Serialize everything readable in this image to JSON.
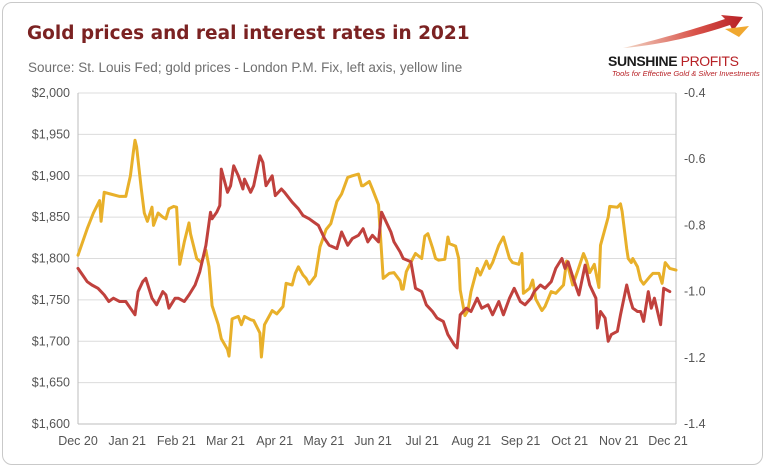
{
  "chart_data": {
    "type": "line",
    "title": "Gold prices and real interest rates in 2021",
    "subtitle": "Source: St. Louis Fed; gold prices - London P.M. Fix, left axis, yellow line",
    "x_tick_labels": [
      "Dec 20",
      "Jan 21",
      "Feb 21",
      "Mar 21",
      "Apr 21",
      "May 21",
      "Jun 21",
      "Jul 21",
      "Aug 21",
      "Sep 21",
      "Oct 21",
      "Nov 21",
      "Dec 21"
    ],
    "x_start": "2020-12-01",
    "x_end": "2021-12-24",
    "y_left": {
      "lim": [
        1600,
        2000
      ],
      "ticks": [
        1600,
        1650,
        1700,
        1750,
        1800,
        1850,
        1900,
        1950,
        2000
      ],
      "tick_labels": [
        "$1,600",
        "$1,650",
        "$1,700",
        "$1,750",
        "$1,800",
        "$1,850",
        "$1,900",
        "$1,950",
        "$2,000"
      ]
    },
    "y_right": {
      "lim": [
        -1.4,
        -0.4
      ],
      "ticks": [
        -1.4,
        -1.2,
        -1.0,
        -0.8,
        -0.6,
        -0.4
      ],
      "tick_labels": [
        "-1.4",
        "-1.2",
        "-1.0",
        "-0.8",
        "-0.6",
        "-0.4"
      ]
    },
    "grid": "horizontal",
    "series": [
      {
        "axis": "left",
        "color": "#e8b02a",
        "points": [
          [
            "2020-12-01",
            1804
          ],
          [
            "2020-12-07",
            1836
          ],
          [
            "2020-12-11",
            1855
          ],
          [
            "2020-12-15",
            1870
          ],
          [
            "2020-12-16",
            1845
          ],
          [
            "2020-12-18",
            1880
          ],
          [
            "2020-12-22",
            1878
          ],
          [
            "2020-12-28",
            1875
          ],
          [
            "2021-01-01",
            1875
          ],
          [
            "2021-01-04",
            1900
          ],
          [
            "2021-01-06",
            1930
          ],
          [
            "2021-01-07",
            1943
          ],
          [
            "2021-01-08",
            1935
          ],
          [
            "2021-01-11",
            1885
          ],
          [
            "2021-01-13",
            1855
          ],
          [
            "2021-01-15",
            1845
          ],
          [
            "2021-01-18",
            1862
          ],
          [
            "2021-01-19",
            1840
          ],
          [
            "2021-01-22",
            1855
          ],
          [
            "2021-01-25",
            1850
          ],
          [
            "2021-01-27",
            1848
          ],
          [
            "2021-01-29",
            1860
          ],
          [
            "2021-02-01",
            1863
          ],
          [
            "2021-02-03",
            1862
          ],
          [
            "2021-02-05",
            1793
          ],
          [
            "2021-02-08",
            1820
          ],
          [
            "2021-02-11",
            1843
          ],
          [
            "2021-02-12",
            1830
          ],
          [
            "2021-02-16",
            1800
          ],
          [
            "2021-02-19",
            1795
          ],
          [
            "2021-02-22",
            1810
          ],
          [
            "2021-02-24",
            1790
          ],
          [
            "2021-02-26",
            1743
          ],
          [
            "2021-03-02",
            1720
          ],
          [
            "2021-03-04",
            1703
          ],
          [
            "2021-03-08",
            1690
          ],
          [
            "2021-03-09",
            1682
          ],
          [
            "2021-03-11",
            1727
          ],
          [
            "2021-03-15",
            1730
          ],
          [
            "2021-03-17",
            1720
          ],
          [
            "2021-03-19",
            1730
          ],
          [
            "2021-03-23",
            1726
          ],
          [
            "2021-03-25",
            1725
          ],
          [
            "2021-03-29",
            1710
          ],
          [
            "2021-03-30",
            1681
          ],
          [
            "2021-04-01",
            1720
          ],
          [
            "2021-04-06",
            1737
          ],
          [
            "2021-04-09",
            1733
          ],
          [
            "2021-04-13",
            1742
          ],
          [
            "2021-04-15",
            1770
          ],
          [
            "2021-04-19",
            1768
          ],
          [
            "2021-04-21",
            1782
          ],
          [
            "2021-04-23",
            1790
          ],
          [
            "2021-04-26",
            1780
          ],
          [
            "2021-04-28",
            1776
          ],
          [
            "2021-04-30",
            1769
          ],
          [
            "2021-05-04",
            1779
          ],
          [
            "2021-05-07",
            1814
          ],
          [
            "2021-05-11",
            1835
          ],
          [
            "2021-05-14",
            1842
          ],
          [
            "2021-05-18",
            1869
          ],
          [
            "2021-05-21",
            1878
          ],
          [
            "2021-05-25",
            1898
          ],
          [
            "2021-05-28",
            1900
          ],
          [
            "2021-06-01",
            1902
          ],
          [
            "2021-06-03",
            1888
          ],
          [
            "2021-06-04",
            1888
          ],
          [
            "2021-06-08",
            1893
          ],
          [
            "2021-06-10",
            1884
          ],
          [
            "2021-06-14",
            1865
          ],
          [
            "2021-06-17",
            1776
          ],
          [
            "2021-06-21",
            1782
          ],
          [
            "2021-06-24",
            1783
          ],
          [
            "2021-06-28",
            1773
          ],
          [
            "2021-06-29",
            1763
          ],
          [
            "2021-06-30",
            1763
          ],
          [
            "2021-07-02",
            1784
          ],
          [
            "2021-07-06",
            1799
          ],
          [
            "2021-07-08",
            1806
          ],
          [
            "2021-07-12",
            1800
          ],
          [
            "2021-07-14",
            1827
          ],
          [
            "2021-07-16",
            1830
          ],
          [
            "2021-07-19",
            1813
          ],
          [
            "2021-07-21",
            1800
          ],
          [
            "2021-07-23",
            1798
          ],
          [
            "2021-07-27",
            1799
          ],
          [
            "2021-07-29",
            1826
          ],
          [
            "2021-07-30",
            1818
          ],
          [
            "2021-08-03",
            1815
          ],
          [
            "2021-08-05",
            1800
          ],
          [
            "2021-08-06",
            1762
          ],
          [
            "2021-08-09",
            1731
          ],
          [
            "2021-08-11",
            1737
          ],
          [
            "2021-08-13",
            1760
          ],
          [
            "2021-08-17",
            1788
          ],
          [
            "2021-08-19",
            1780
          ],
          [
            "2021-08-23",
            1797
          ],
          [
            "2021-08-25",
            1788
          ],
          [
            "2021-08-27",
            1795
          ],
          [
            "2021-08-31",
            1816
          ],
          [
            "2021-09-03",
            1826
          ],
          [
            "2021-09-07",
            1800
          ],
          [
            "2021-09-09",
            1795
          ],
          [
            "2021-09-13",
            1793
          ],
          [
            "2021-09-15",
            1806
          ],
          [
            "2021-09-16",
            1758
          ],
          [
            "2021-09-20",
            1764
          ],
          [
            "2021-09-22",
            1774
          ],
          [
            "2021-09-24",
            1751
          ],
          [
            "2021-09-28",
            1737
          ],
          [
            "2021-09-30",
            1742
          ],
          [
            "2021-10-04",
            1760
          ],
          [
            "2021-10-07",
            1758
          ],
          [
            "2021-10-12",
            1768
          ],
          [
            "2021-10-14",
            1797
          ],
          [
            "2021-10-18",
            1768
          ],
          [
            "2021-10-21",
            1784
          ],
          [
            "2021-10-25",
            1806
          ],
          [
            "2021-10-27",
            1797
          ],
          [
            "2021-10-29",
            1783
          ],
          [
            "2021-11-01",
            1793
          ],
          [
            "2021-11-04",
            1765
          ],
          [
            "2021-11-05",
            1816
          ],
          [
            "2021-11-10",
            1850
          ],
          [
            "2021-11-11",
            1863
          ],
          [
            "2021-11-16",
            1862
          ],
          [
            "2021-11-18",
            1866
          ],
          [
            "2021-11-19",
            1857
          ],
          [
            "2021-11-22",
            1812
          ],
          [
            "2021-11-23",
            1800
          ],
          [
            "2021-11-25",
            1795
          ],
          [
            "2021-11-26",
            1800
          ],
          [
            "2021-11-29",
            1790
          ],
          [
            "2021-12-01",
            1774
          ],
          [
            "2021-12-03",
            1769
          ],
          [
            "2021-12-07",
            1778
          ],
          [
            "2021-12-09",
            1782
          ],
          [
            "2021-12-13",
            1782
          ],
          [
            "2021-12-15",
            1770
          ],
          [
            "2021-12-17",
            1795
          ],
          [
            "2021-12-20",
            1788
          ],
          [
            "2021-12-24",
            1786
          ]
        ]
      },
      {
        "axis": "right",
        "color": "#c0413d",
        "points": [
          [
            "2020-12-01",
            -0.93
          ],
          [
            "2020-12-04",
            -0.95
          ],
          [
            "2020-12-07",
            -0.97
          ],
          [
            "2020-12-10",
            -0.98
          ],
          [
            "2020-12-14",
            -0.99
          ],
          [
            "2020-12-18",
            -1.01
          ],
          [
            "2020-12-21",
            -1.03
          ],
          [
            "2020-12-24",
            -1.02
          ],
          [
            "2020-12-28",
            -1.03
          ],
          [
            "2021-01-01",
            -1.03
          ],
          [
            "2021-01-04",
            -1.05
          ],
          [
            "2021-01-07",
            -1.07
          ],
          [
            "2021-01-09",
            -1.0
          ],
          [
            "2021-01-12",
            -0.97
          ],
          [
            "2021-01-14",
            -0.96
          ],
          [
            "2021-01-18",
            -1.02
          ],
          [
            "2021-01-21",
            -1.04
          ],
          [
            "2021-01-25",
            -1.0
          ],
          [
            "2021-01-27",
            -1.01
          ],
          [
            "2021-01-29",
            -1.05
          ],
          [
            "2021-02-02",
            -1.02
          ],
          [
            "2021-02-04",
            -1.02
          ],
          [
            "2021-02-08",
            -1.03
          ],
          [
            "2021-02-11",
            -1.01
          ],
          [
            "2021-02-15",
            -0.98
          ],
          [
            "2021-02-18",
            -0.94
          ],
          [
            "2021-02-22",
            -0.86
          ],
          [
            "2021-02-25",
            -0.76
          ],
          [
            "2021-02-26",
            -0.78
          ],
          [
            "2021-03-01",
            -0.76
          ],
          [
            "2021-03-03",
            -0.74
          ],
          [
            "2021-03-04",
            -0.63
          ],
          [
            "2021-03-08",
            -0.7
          ],
          [
            "2021-03-10",
            -0.68
          ],
          [
            "2021-03-12",
            -0.62
          ],
          [
            "2021-03-15",
            -0.65
          ],
          [
            "2021-03-18",
            -0.69
          ],
          [
            "2021-03-19",
            -0.66
          ],
          [
            "2021-03-23",
            -0.7
          ],
          [
            "2021-03-25",
            -0.68
          ],
          [
            "2021-03-29",
            -0.59
          ],
          [
            "2021-03-31",
            -0.61
          ],
          [
            "2021-04-02",
            -0.68
          ],
          [
            "2021-04-06",
            -0.65
          ],
          [
            "2021-04-08",
            -0.71
          ],
          [
            "2021-04-12",
            -0.69
          ],
          [
            "2021-04-14",
            -0.7
          ],
          [
            "2021-04-19",
            -0.73
          ],
          [
            "2021-04-23",
            -0.75
          ],
          [
            "2021-04-26",
            -0.77
          ],
          [
            "2021-04-30",
            -0.78
          ],
          [
            "2021-05-03",
            -0.79
          ],
          [
            "2021-05-06",
            -0.8
          ],
          [
            "2021-05-10",
            -0.84
          ],
          [
            "2021-05-13",
            -0.86
          ],
          [
            "2021-05-18",
            -0.87
          ],
          [
            "2021-05-21",
            -0.82
          ],
          [
            "2021-05-25",
            -0.86
          ],
          [
            "2021-05-28",
            -0.84
          ],
          [
            "2021-06-01",
            -0.83
          ],
          [
            "2021-06-04",
            -0.81
          ],
          [
            "2021-06-07",
            -0.85
          ],
          [
            "2021-06-10",
            -0.83
          ],
          [
            "2021-06-14",
            -0.85
          ],
          [
            "2021-06-16",
            -0.76
          ],
          [
            "2021-06-18",
            -0.78
          ],
          [
            "2021-06-22",
            -0.82
          ],
          [
            "2021-06-24",
            -0.85
          ],
          [
            "2021-06-28",
            -0.88
          ],
          [
            "2021-06-30",
            -0.9
          ],
          [
            "2021-07-05",
            -0.91
          ],
          [
            "2021-07-08",
            -0.99
          ],
          [
            "2021-07-12",
            -1.0
          ],
          [
            "2021-07-15",
            -1.04
          ],
          [
            "2021-07-19",
            -1.06
          ],
          [
            "2021-07-22",
            -1.08
          ],
          [
            "2021-07-26",
            -1.09
          ],
          [
            "2021-07-29",
            -1.13
          ],
          [
            "2021-08-02",
            -1.16
          ],
          [
            "2021-08-04",
            -1.17
          ],
          [
            "2021-08-06",
            -1.07
          ],
          [
            "2021-08-10",
            -1.05
          ],
          [
            "2021-08-13",
            -1.06
          ],
          [
            "2021-08-17",
            -1.02
          ],
          [
            "2021-08-20",
            -1.05
          ],
          [
            "2021-08-24",
            -1.04
          ],
          [
            "2021-08-27",
            -1.07
          ],
          [
            "2021-08-31",
            -1.03
          ],
          [
            "2021-09-03",
            -1.07
          ],
          [
            "2021-09-07",
            -1.02
          ],
          [
            "2021-09-10",
            -0.99
          ],
          [
            "2021-09-14",
            -1.03
          ],
          [
            "2021-09-17",
            -1.04
          ],
          [
            "2021-09-21",
            -1.02
          ],
          [
            "2021-09-23",
            -1.0
          ],
          [
            "2021-09-27",
            -0.98
          ],
          [
            "2021-09-30",
            -0.99
          ],
          [
            "2021-10-04",
            -0.97
          ],
          [
            "2021-10-07",
            -0.93
          ],
          [
            "2021-10-11",
            -0.9
          ],
          [
            "2021-10-13",
            -0.93
          ],
          [
            "2021-10-15",
            -0.91
          ],
          [
            "2021-10-19",
            -0.97
          ],
          [
            "2021-10-22",
            -1.01
          ],
          [
            "2021-10-26",
            -0.92
          ],
          [
            "2021-10-29",
            -0.98
          ],
          [
            "2021-11-02",
            -1.02
          ],
          [
            "2021-11-03",
            -1.11
          ],
          [
            "2021-11-05",
            -1.06
          ],
          [
            "2021-11-08",
            -1.08
          ],
          [
            "2021-11-10",
            -1.15
          ],
          [
            "2021-11-12",
            -1.13
          ],
          [
            "2021-11-16",
            -1.12
          ],
          [
            "2021-11-18",
            -1.07
          ],
          [
            "2021-11-22",
            -0.98
          ],
          [
            "2021-11-24",
            -1.02
          ],
          [
            "2021-11-26",
            -1.05
          ],
          [
            "2021-11-29",
            -1.06
          ],
          [
            "2021-12-01",
            -1.06
          ],
          [
            "2021-12-03",
            -1.09
          ],
          [
            "2021-12-06",
            -1.0
          ],
          [
            "2021-12-08",
            -1.05
          ],
          [
            "2021-12-10",
            -1.02
          ],
          [
            "2021-12-14",
            -1.1
          ],
          [
            "2021-12-16",
            -0.99
          ],
          [
            "2021-12-20",
            -1.0
          ]
        ]
      }
    ]
  },
  "brand": {
    "name_first": "SUNSHINE ",
    "name_second": "PROFITS",
    "tagline": "Tools for Effective Gold & Silver Investments"
  }
}
